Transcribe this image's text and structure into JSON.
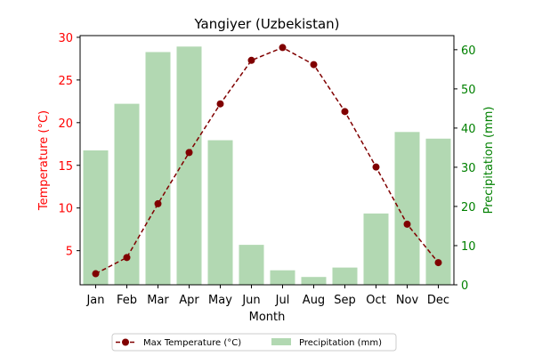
{
  "chart_data": {
    "type": "bar",
    "title": "Yangiyer (Uzbekistan)",
    "xlabel": "Month",
    "categories": [
      "Jan",
      "Feb",
      "Mar",
      "Apr",
      "May",
      "Jun",
      "Jul",
      "Aug",
      "Sep",
      "Oct",
      "Nov",
      "Dec"
    ],
    "temperature": {
      "name": "Max Temperature (°C)",
      "type": "line",
      "axis": "left",
      "ylabel": "Temperature (°C)",
      "ylim": [
        1.0,
        30.2
      ],
      "ticks": [
        5,
        10,
        15,
        20,
        25,
        30
      ],
      "values": [
        2.3,
        4.2,
        10.5,
        16.5,
        22.2,
        27.3,
        28.8,
        26.8,
        21.3,
        14.8,
        8.1,
        3.6
      ],
      "color": "#800000"
    },
    "precipitation": {
      "name": "Precipitation (mm)",
      "type": "bar",
      "axis": "right",
      "ylabel": "Precipitation (mm)",
      "ylim": [
        0,
        63.6
      ],
      "ticks": [
        0,
        10,
        20,
        30,
        40,
        50,
        60
      ],
      "values": [
        34.3,
        46.2,
        59.4,
        60.8,
        36.9,
        10.2,
        3.7,
        2.0,
        4.4,
        18.2,
        39.0,
        37.3
      ],
      "color": "#b2d8b2"
    },
    "axis_colors": {
      "left": "#ff0000",
      "right": "#008000"
    },
    "legend_position": "bottom-center"
  }
}
